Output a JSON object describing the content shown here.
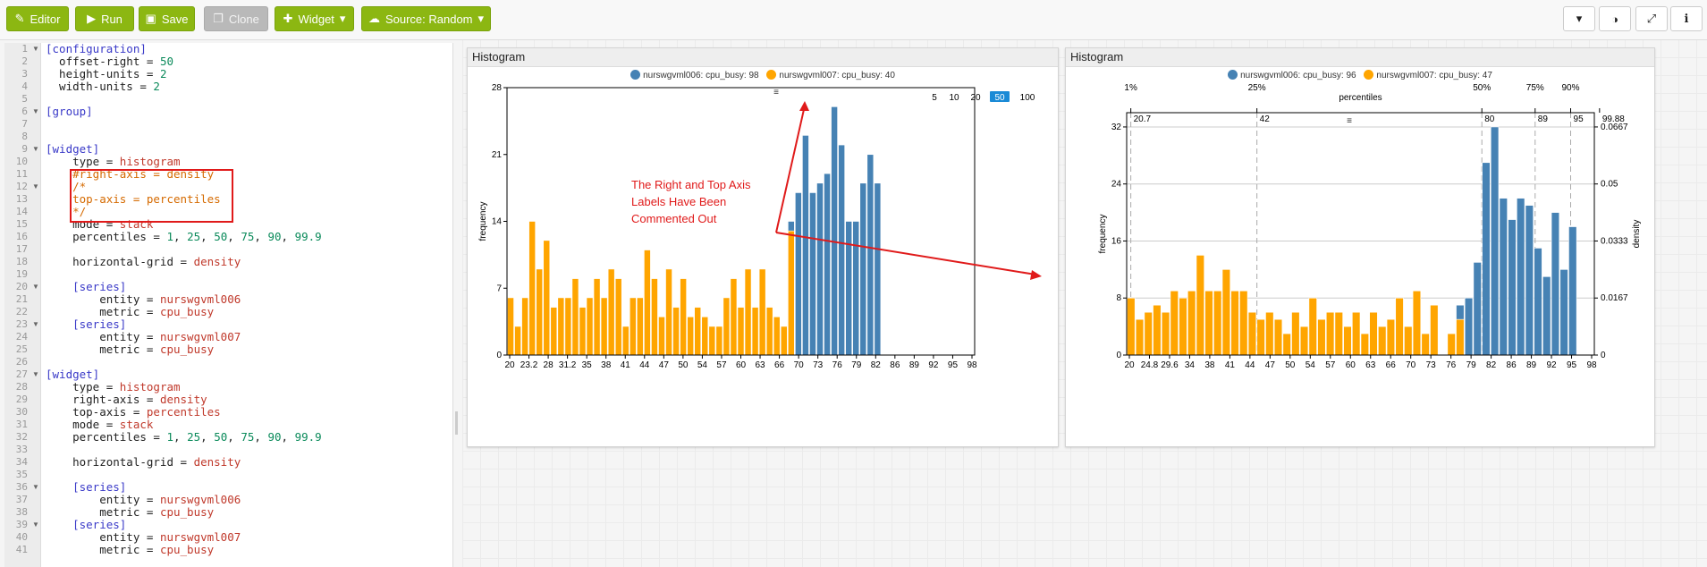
{
  "toolbar": {
    "editor": "Editor",
    "run": "Run",
    "save": "Save",
    "clone": "Clone",
    "widget": "Widget",
    "source": "Source: Random"
  },
  "editor": {
    "lines": [
      {
        "n": "1",
        "fold": true,
        "parts": [
          [
            "sec",
            "[configuration]"
          ]
        ]
      },
      {
        "n": "2",
        "parts": [
          [
            "",
            "  offset-right = "
          ],
          [
            "num",
            "50"
          ]
        ]
      },
      {
        "n": "3",
        "parts": [
          [
            "",
            "  height-units = "
          ],
          [
            "num",
            "2"
          ]
        ]
      },
      {
        "n": "4",
        "parts": [
          [
            "",
            "  width-units = "
          ],
          [
            "num",
            "2"
          ]
        ]
      },
      {
        "n": "5",
        "parts": []
      },
      {
        "n": "6",
        "fold": true,
        "parts": [
          [
            "sec",
            "[group]"
          ]
        ]
      },
      {
        "n": "7",
        "parts": []
      },
      {
        "n": "8",
        "parts": []
      },
      {
        "n": "9",
        "fold": true,
        "parts": [
          [
            "sec",
            "[widget]"
          ]
        ]
      },
      {
        "n": "10",
        "parts": [
          [
            "",
            "    type = "
          ],
          [
            "str",
            "histogram"
          ]
        ]
      },
      {
        "n": "11",
        "parts": [
          [
            "cmt",
            "    #right-axis = density"
          ]
        ]
      },
      {
        "n": "12",
        "fold": true,
        "parts": [
          [
            "cmt",
            "    /*"
          ]
        ]
      },
      {
        "n": "13",
        "parts": [
          [
            "cmt",
            "    top-axis = percentiles"
          ]
        ]
      },
      {
        "n": "14",
        "parts": [
          [
            "cmt",
            "    */"
          ]
        ]
      },
      {
        "n": "15",
        "parts": [
          [
            "",
            "    mode = "
          ],
          [
            "str",
            "stack"
          ]
        ]
      },
      {
        "n": "16",
        "parts": [
          [
            "",
            "    percentiles = "
          ],
          [
            "num",
            "1"
          ],
          [
            "",
            ", "
          ],
          [
            "num",
            "25"
          ],
          [
            "",
            ", "
          ],
          [
            "num",
            "50"
          ],
          [
            "",
            ", "
          ],
          [
            "num",
            "75"
          ],
          [
            "",
            ", "
          ],
          [
            "num",
            "90"
          ],
          [
            "",
            ", "
          ],
          [
            "num",
            "99.9"
          ]
        ]
      },
      {
        "n": "17",
        "parts": []
      },
      {
        "n": "18",
        "parts": [
          [
            "",
            "    horizontal-grid = "
          ],
          [
            "str",
            "density"
          ]
        ]
      },
      {
        "n": "19",
        "parts": []
      },
      {
        "n": "20",
        "fold": true,
        "parts": [
          [
            "sec",
            "    [series]"
          ]
        ]
      },
      {
        "n": "21",
        "parts": [
          [
            "",
            "        entity = "
          ],
          [
            "str",
            "nurswgvml006"
          ]
        ]
      },
      {
        "n": "22",
        "parts": [
          [
            "",
            "        metric = "
          ],
          [
            "str",
            "cpu_busy"
          ]
        ]
      },
      {
        "n": "23",
        "fold": true,
        "parts": [
          [
            "sec",
            "    [series]"
          ]
        ]
      },
      {
        "n": "24",
        "parts": [
          [
            "",
            "        entity = "
          ],
          [
            "str",
            "nurswgvml007"
          ]
        ]
      },
      {
        "n": "25",
        "parts": [
          [
            "",
            "        metric = "
          ],
          [
            "str",
            "cpu_busy"
          ]
        ]
      },
      {
        "n": "26",
        "parts": []
      },
      {
        "n": "27",
        "fold": true,
        "parts": [
          [
            "sec",
            "[widget]"
          ]
        ]
      },
      {
        "n": "28",
        "parts": [
          [
            "",
            "    type = "
          ],
          [
            "str",
            "histogram"
          ]
        ]
      },
      {
        "n": "29",
        "parts": [
          [
            "",
            "    right-axis = "
          ],
          [
            "str",
            "density"
          ]
        ]
      },
      {
        "n": "30",
        "parts": [
          [
            "",
            "    top-axis = "
          ],
          [
            "str",
            "percentiles"
          ]
        ]
      },
      {
        "n": "31",
        "parts": [
          [
            "",
            "    mode = "
          ],
          [
            "str",
            "stack"
          ]
        ]
      },
      {
        "n": "32",
        "parts": [
          [
            "",
            "    percentiles = "
          ],
          [
            "num",
            "1"
          ],
          [
            "",
            ", "
          ],
          [
            "num",
            "25"
          ],
          [
            "",
            ", "
          ],
          [
            "num",
            "50"
          ],
          [
            "",
            ", "
          ],
          [
            "num",
            "75"
          ],
          [
            "",
            ", "
          ],
          [
            "num",
            "90"
          ],
          [
            "",
            ", "
          ],
          [
            "num",
            "99.9"
          ]
        ]
      },
      {
        "n": "33",
        "parts": []
      },
      {
        "n": "34",
        "parts": [
          [
            "",
            "    horizontal-grid = "
          ],
          [
            "str",
            "density"
          ]
        ]
      },
      {
        "n": "35",
        "parts": []
      },
      {
        "n": "36",
        "fold": true,
        "parts": [
          [
            "sec",
            "    [series]"
          ]
        ]
      },
      {
        "n": "37",
        "parts": [
          [
            "",
            "        entity = "
          ],
          [
            "str",
            "nurswgvml006"
          ]
        ]
      },
      {
        "n": "38",
        "parts": [
          [
            "",
            "        metric = "
          ],
          [
            "str",
            "cpu_busy"
          ]
        ]
      },
      {
        "n": "39",
        "fold": true,
        "parts": [
          [
            "sec",
            "    [series]"
          ]
        ]
      },
      {
        "n": "40",
        "parts": [
          [
            "",
            "        entity = "
          ],
          [
            "str",
            "nurswgvml007"
          ]
        ]
      },
      {
        "n": "41",
        "parts": [
          [
            "",
            "        metric = "
          ],
          [
            "str",
            "cpu_busy"
          ]
        ]
      }
    ]
  },
  "colors": {
    "blue": "#4682b4",
    "orange": "#ffa500",
    "annotation": "#e01a1a",
    "accent": "#8cb712",
    "selected": "#1a8ad6"
  },
  "panel1": {
    "title": "Histogram",
    "legend": [
      {
        "label": "nurswgvml006: cpu_busy: 98",
        "color": "#4682b4"
      },
      {
        "label": "nurswgvml007: cpu_busy: 40",
        "color": "#ffa500"
      }
    ],
    "zoom": [
      "5",
      "10",
      "20",
      "50",
      "100"
    ],
    "zoom_selected": "50",
    "handle": "≡",
    "annotation": [
      "The Right and Top Axis",
      "Labels Have Been",
      "Commented Out"
    ]
  },
  "panel2": {
    "title": "Histogram",
    "legend": [
      {
        "label": "nurswgvml006: cpu_busy: 96",
        "color": "#4682b4"
      },
      {
        "label": "nurswgvml007: cpu_busy: 47",
        "color": "#ffa500"
      }
    ],
    "handle": "≡"
  },
  "chart_data": [
    {
      "type": "bar",
      "mode": "stack",
      "ylabel": "frequency",
      "xlim": [
        20,
        99
      ],
      "ylim": [
        0,
        28
      ],
      "yticks": [
        0,
        7,
        14,
        21,
        28
      ],
      "xticks": [
        "20",
        "23.2",
        "28",
        "31.2",
        "35",
        "38",
        "41",
        "44",
        "47",
        "50",
        "54",
        "57",
        "60",
        "63",
        "66",
        "70",
        "73",
        "76",
        "79",
        "82",
        "86",
        "89",
        "92",
        "95",
        "98"
      ],
      "series": [
        {
          "name": "nurswgvml007",
          "color": "#ffa500",
          "values": [
            6,
            3,
            6,
            14,
            9,
            12,
            5,
            6,
            6,
            8,
            5,
            6,
            8,
            6,
            9,
            8,
            3,
            6,
            6,
            11,
            8,
            4,
            9,
            5,
            8,
            4,
            5,
            4,
            3,
            3,
            6,
            8,
            5,
            9,
            5,
            9,
            5,
            4,
            3,
            13,
            0,
            0,
            0,
            0,
            0,
            0,
            0,
            0,
            0,
            0,
            0,
            0,
            0,
            0,
            0,
            0,
            0,
            0,
            0,
            0,
            0,
            0,
            0,
            0,
            0
          ]
        },
        {
          "name": "nurswgvml006",
          "color": "#4682b4",
          "values": [
            0,
            0,
            0,
            0,
            0,
            0,
            0,
            0,
            0,
            0,
            0,
            0,
            0,
            0,
            0,
            0,
            0,
            0,
            0,
            0,
            0,
            0,
            0,
            0,
            0,
            0,
            0,
            0,
            0,
            0,
            0,
            0,
            0,
            0,
            0,
            0,
            0,
            0,
            0,
            1,
            17,
            23,
            17,
            18,
            19,
            26,
            22,
            14,
            14,
            18,
            21,
            18
          ]
        }
      ]
    },
    {
      "type": "bar",
      "mode": "stack",
      "ylabel": "frequency",
      "y2label": "density",
      "top_axis_label": "percentiles",
      "xlim": [
        20,
        99
      ],
      "ylim": [
        0,
        34
      ],
      "yticks": [
        0,
        8,
        16,
        24,
        32
      ],
      "y2ticks": [
        "0",
        "0.0167",
        "0.0333",
        "0.05",
        "0.0667"
      ],
      "xticks": [
        "20",
        "24.8",
        "29.6",
        "34",
        "38",
        "41",
        "44",
        "47",
        "50",
        "54",
        "57",
        "60",
        "63",
        "66",
        "70",
        "73",
        "76",
        "79",
        "82",
        "86",
        "89",
        "92",
        "95",
        "98"
      ],
      "percentiles": [
        {
          "label": "1%",
          "value": "20.7",
          "pos": 20.7
        },
        {
          "label": "25%",
          "value": "42",
          "pos": 42
        },
        {
          "label": "50%",
          "value": "80",
          "pos": 80
        },
        {
          "label": "75%",
          "value": "89",
          "pos": 89
        },
        {
          "label": "90%",
          "value": "95",
          "pos": 95
        },
        {
          "label": "",
          "value": "99.88",
          "pos": 99.88
        }
      ],
      "series": [
        {
          "name": "nurswgvml007",
          "color": "#ffa500",
          "values": [
            8,
            5,
            6,
            7,
            6,
            9,
            8,
            9,
            14,
            9,
            9,
            12,
            9,
            9,
            6,
            5,
            6,
            5,
            3,
            6,
            4,
            8,
            5,
            6,
            6,
            4,
            6,
            3,
            6,
            4,
            5,
            8,
            4,
            9,
            3,
            7,
            0,
            3,
            5,
            0,
            0,
            0,
            0,
            0,
            0,
            0,
            0,
            0,
            0,
            0,
            0,
            0,
            0,
            0
          ]
        },
        {
          "name": "nurswgvml006",
          "color": "#4682b4",
          "values": [
            0,
            0,
            0,
            0,
            0,
            0,
            0,
            0,
            0,
            0,
            0,
            0,
            0,
            0,
            0,
            0,
            0,
            0,
            0,
            0,
            0,
            0,
            0,
            0,
            0,
            0,
            0,
            0,
            0,
            0,
            0,
            0,
            0,
            0,
            0,
            0,
            0,
            0,
            2,
            8,
            13,
            27,
            32,
            22,
            19,
            22,
            21,
            15,
            11,
            20,
            12,
            18
          ]
        }
      ]
    }
  ]
}
